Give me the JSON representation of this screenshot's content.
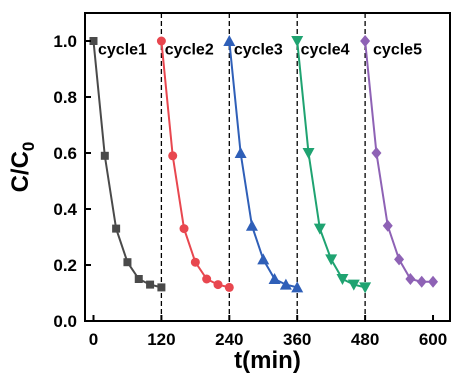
{
  "chart_data": {
    "type": "line",
    "xlabel": "t(min)",
    "ylabel": {
      "main": "C/C",
      "sub": "0"
    },
    "xlim": [
      -15,
      630
    ],
    "ylim": [
      0,
      1.1
    ],
    "xticks": [
      "0",
      "120",
      "240",
      "360",
      "480",
      "600"
    ],
    "xtick_values": [
      0,
      120,
      240,
      360,
      480,
      600
    ],
    "yticks": [
      "0.0",
      "0.2",
      "0.4",
      "0.6",
      "0.8",
      "1.0"
    ],
    "ytick_values": [
      0,
      0.2,
      0.4,
      0.6,
      0.8,
      1.0
    ],
    "separators": [
      120,
      240,
      360,
      480
    ],
    "annotations": [
      {
        "text": "cycle1",
        "x": 8,
        "y": 0.97
      },
      {
        "text": "cycle2",
        "x": 126,
        "y": 0.97
      },
      {
        "text": "cycle3",
        "x": 248,
        "y": 0.97
      },
      {
        "text": "cycle4",
        "x": 366,
        "y": 0.97
      },
      {
        "text": "cycle5",
        "x": 494,
        "y": 0.97
      }
    ],
    "series": [
      {
        "color": "#4a4a4a",
        "marker": "square",
        "x": [
          0,
          20,
          40,
          60,
          80,
          100,
          120
        ],
        "y": [
          1.0,
          0.59,
          0.33,
          0.21,
          0.15,
          0.13,
          0.12
        ]
      },
      {
        "color": "#e8474f",
        "marker": "circle",
        "x": [
          120,
          140,
          160,
          180,
          200,
          220,
          240
        ],
        "y": [
          1.0,
          0.59,
          0.33,
          0.21,
          0.15,
          0.13,
          0.12
        ]
      },
      {
        "color": "#2f5fb8",
        "marker": "triangle-up",
        "x": [
          240,
          260,
          280,
          300,
          320,
          340,
          360
        ],
        "y": [
          1.0,
          0.6,
          0.34,
          0.22,
          0.15,
          0.13,
          0.12
        ]
      },
      {
        "color": "#1fa371",
        "marker": "triangle-down",
        "x": [
          360,
          380,
          400,
          420,
          440,
          460,
          480
        ],
        "y": [
          1.0,
          0.6,
          0.33,
          0.22,
          0.15,
          0.13,
          0.12
        ]
      },
      {
        "color": "#8e62b5",
        "marker": "diamond",
        "x": [
          480,
          500,
          520,
          540,
          560,
          580,
          600
        ],
        "y": [
          1.0,
          0.6,
          0.34,
          0.22,
          0.15,
          0.14,
          0.14
        ]
      }
    ]
  }
}
